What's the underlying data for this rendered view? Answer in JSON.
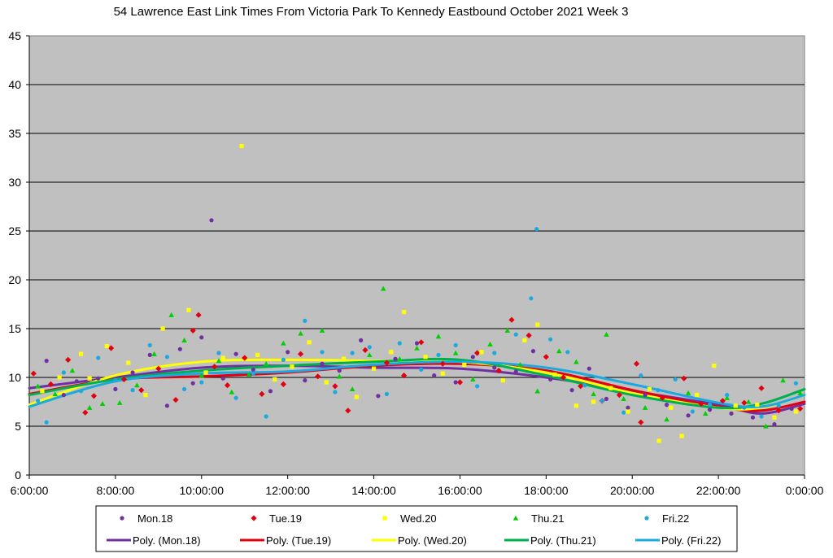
{
  "chart_data": {
    "type": "scatter",
    "title": "54 Lawrence East Link Times From Victoria Park To Kennedy Eastbound October 2021  Week 3",
    "xlabel": "",
    "ylabel": "",
    "x_ticks": [
      "6:00:00",
      "8:00:00",
      "10:00:00",
      "12:00:00",
      "14:00:00",
      "16:00:00",
      "18:00:00",
      "20:00:00",
      "22:00:00",
      "0:00:00"
    ],
    "xlim_hours": [
      6,
      24
    ],
    "ylim": [
      0,
      45
    ],
    "y_ticks": [
      "0",
      "5",
      "10",
      "15",
      "20",
      "25",
      "30",
      "35",
      "40",
      "45"
    ],
    "grid": true,
    "plot_background": "#c0c0c0",
    "legend_position": "bottom",
    "series": [
      {
        "name": "Mon.18",
        "marker": "circle",
        "color": "#7030a0",
        "points": [
          [
            6.4,
            11.7
          ],
          [
            6.8,
            8.2
          ],
          [
            7.1,
            9.6
          ],
          [
            7.6,
            9.9
          ],
          [
            8.0,
            8.8
          ],
          [
            8.4,
            10.5
          ],
          [
            8.8,
            12.3
          ],
          [
            9.2,
            7.1
          ],
          [
            9.5,
            12.9
          ],
          [
            9.8,
            9.4
          ],
          [
            10.0,
            14.1
          ],
          [
            10.23,
            26.1
          ],
          [
            10.5,
            9.9
          ],
          [
            10.8,
            12.4
          ],
          [
            11.2,
            10.8
          ],
          [
            11.6,
            8.6
          ],
          [
            12.0,
            12.6
          ],
          [
            12.4,
            9.7
          ],
          [
            12.8,
            11.4
          ],
          [
            13.2,
            10.7
          ],
          [
            13.7,
            13.8
          ],
          [
            14.1,
            8.1
          ],
          [
            14.5,
            11.9
          ],
          [
            15.0,
            13.5
          ],
          [
            15.4,
            10.2
          ],
          [
            15.9,
            9.5
          ],
          [
            16.3,
            12.1
          ],
          [
            16.8,
            11.0
          ],
          [
            17.3,
            10.6
          ],
          [
            17.7,
            12.7
          ],
          [
            18.1,
            9.8
          ],
          [
            18.6,
            8.7
          ],
          [
            19.0,
            10.9
          ],
          [
            19.4,
            7.8
          ],
          [
            19.9,
            6.9
          ],
          [
            20.3,
            8.2
          ],
          [
            20.8,
            7.2
          ],
          [
            21.3,
            6.1
          ],
          [
            21.8,
            6.7
          ],
          [
            22.3,
            6.3
          ],
          [
            22.8,
            5.9
          ],
          [
            23.3,
            5.2
          ],
          [
            23.7,
            6.8
          ]
        ]
      },
      {
        "name": "Tue.19",
        "marker": "diamond",
        "color": "#e3000f",
        "points": [
          [
            6.1,
            10.4
          ],
          [
            6.5,
            9.3
          ],
          [
            6.9,
            11.8
          ],
          [
            7.3,
            6.4
          ],
          [
            7.5,
            8.1
          ],
          [
            7.9,
            13.0
          ],
          [
            8.2,
            9.8
          ],
          [
            8.6,
            8.7
          ],
          [
            9.0,
            10.9
          ],
          [
            9.4,
            7.7
          ],
          [
            9.8,
            14.8
          ],
          [
            9.93,
            16.4
          ],
          [
            10.3,
            11.1
          ],
          [
            10.6,
            9.2
          ],
          [
            11.0,
            12.0
          ],
          [
            11.4,
            8.3
          ],
          [
            11.9,
            9.3
          ],
          [
            12.3,
            12.4
          ],
          [
            12.7,
            10.1
          ],
          [
            13.1,
            9.1
          ],
          [
            13.4,
            6.6
          ],
          [
            13.8,
            12.8
          ],
          [
            14.3,
            11.5
          ],
          [
            14.7,
            10.2
          ],
          [
            15.1,
            13.6
          ],
          [
            15.6,
            11.4
          ],
          [
            16.0,
            9.5
          ],
          [
            16.4,
            12.5
          ],
          [
            16.9,
            10.7
          ],
          [
            17.2,
            15.9
          ],
          [
            17.6,
            14.3
          ],
          [
            18.0,
            12.1
          ],
          [
            18.4,
            10.0
          ],
          [
            18.8,
            9.1
          ],
          [
            19.3,
            7.6
          ],
          [
            19.7,
            8.2
          ],
          [
            20.1,
            11.4
          ],
          [
            20.2,
            5.4
          ],
          [
            20.7,
            7.9
          ],
          [
            21.2,
            9.9
          ],
          [
            21.6,
            7.3
          ],
          [
            22.1,
            7.6
          ],
          [
            22.6,
            7.4
          ],
          [
            23.0,
            8.9
          ],
          [
            23.4,
            6.6
          ],
          [
            23.9,
            6.8
          ]
        ]
      },
      {
        "name": "Wed.20",
        "marker": "square",
        "color": "#ffff00",
        "points": [
          [
            6.3,
            8.6
          ],
          [
            6.7,
            10.0
          ],
          [
            7.2,
            12.4
          ],
          [
            7.4,
            9.9
          ],
          [
            7.8,
            13.2
          ],
          [
            8.3,
            11.5
          ],
          [
            8.7,
            8.2
          ],
          [
            9.1,
            15.0
          ],
          [
            9.7,
            16.9
          ],
          [
            10.1,
            10.5
          ],
          [
            10.5,
            12.0
          ],
          [
            10.93,
            33.7
          ],
          [
            11.3,
            12.3
          ],
          [
            11.7,
            9.8
          ],
          [
            12.1,
            11.1
          ],
          [
            12.5,
            13.6
          ],
          [
            12.9,
            9.5
          ],
          [
            13.3,
            11.9
          ],
          [
            13.6,
            8.0
          ],
          [
            14.0,
            10.9
          ],
          [
            14.4,
            12.6
          ],
          [
            14.7,
            16.7
          ],
          [
            15.2,
            12.1
          ],
          [
            15.6,
            10.4
          ],
          [
            16.1,
            11.3
          ],
          [
            16.5,
            12.6
          ],
          [
            17.0,
            9.7
          ],
          [
            17.5,
            13.8
          ],
          [
            17.8,
            15.4
          ],
          [
            18.2,
            10.3
          ],
          [
            18.7,
            7.1
          ],
          [
            19.1,
            7.5
          ],
          [
            19.5,
            8.9
          ],
          [
            19.9,
            6.5
          ],
          [
            20.4,
            8.8
          ],
          [
            20.62,
            3.5
          ],
          [
            20.9,
            6.9
          ],
          [
            21.15,
            4.0
          ],
          [
            21.5,
            8.2
          ],
          [
            21.9,
            11.2
          ],
          [
            22.4,
            7.1
          ],
          [
            22.9,
            7.2
          ],
          [
            23.3,
            5.9
          ],
          [
            23.8,
            6.5
          ]
        ]
      },
      {
        "name": "Thu.21",
        "marker": "triangle",
        "color": "#00d000",
        "points": [
          [
            6.2,
            9.1
          ],
          [
            6.6,
            8.3
          ],
          [
            7.0,
            10.7
          ],
          [
            7.4,
            6.9
          ],
          [
            7.7,
            7.3
          ],
          [
            8.1,
            7.4
          ],
          [
            8.5,
            9.2
          ],
          [
            8.9,
            12.4
          ],
          [
            9.3,
            16.4
          ],
          [
            9.6,
            13.8
          ],
          [
            10.0,
            10.2
          ],
          [
            10.4,
            11.7
          ],
          [
            10.7,
            8.5
          ],
          [
            11.1,
            10.3
          ],
          [
            11.5,
            11.4
          ],
          [
            11.9,
            13.5
          ],
          [
            12.3,
            14.5
          ],
          [
            12.8,
            14.8
          ],
          [
            13.2,
            10.1
          ],
          [
            13.5,
            8.8
          ],
          [
            13.9,
            12.3
          ],
          [
            14.22,
            19.1
          ],
          [
            14.6,
            11.9
          ],
          [
            15.0,
            13.0
          ],
          [
            15.5,
            14.2
          ],
          [
            15.9,
            12.5
          ],
          [
            16.3,
            9.8
          ],
          [
            16.7,
            13.4
          ],
          [
            17.1,
            14.8
          ],
          [
            17.4,
            11.3
          ],
          [
            17.8,
            8.6
          ],
          [
            18.3,
            12.7
          ],
          [
            18.7,
            11.6
          ],
          [
            19.1,
            8.3
          ],
          [
            19.4,
            14.4
          ],
          [
            19.8,
            7.8
          ],
          [
            20.3,
            6.9
          ],
          [
            20.8,
            5.7
          ],
          [
            21.3,
            8.4
          ],
          [
            21.7,
            6.3
          ],
          [
            22.2,
            7.9
          ],
          [
            22.7,
            7.5
          ],
          [
            23.1,
            5.0
          ],
          [
            23.5,
            9.7
          ],
          [
            23.9,
            8.4
          ]
        ]
      },
      {
        "name": "Fri.22",
        "marker": "circle",
        "color": "#1ca9e0",
        "points": [
          [
            6.2,
            7.6
          ],
          [
            6.4,
            5.4
          ],
          [
            6.8,
            10.5
          ],
          [
            7.2,
            8.6
          ],
          [
            7.6,
            12.0
          ],
          [
            8.0,
            9.7
          ],
          [
            8.4,
            8.7
          ],
          [
            8.8,
            13.3
          ],
          [
            9.2,
            12.1
          ],
          [
            9.6,
            8.8
          ],
          [
            10.0,
            9.5
          ],
          [
            10.4,
            12.5
          ],
          [
            10.8,
            7.9
          ],
          [
            11.2,
            10.4
          ],
          [
            11.5,
            6.0
          ],
          [
            11.9,
            11.8
          ],
          [
            12.4,
            15.8
          ],
          [
            12.8,
            12.6
          ],
          [
            13.1,
            8.5
          ],
          [
            13.5,
            12.5
          ],
          [
            13.9,
            13.1
          ],
          [
            14.3,
            8.3
          ],
          [
            14.6,
            13.5
          ],
          [
            15.1,
            10.8
          ],
          [
            15.5,
            12.3
          ],
          [
            15.9,
            13.3
          ],
          [
            16.4,
            9.1
          ],
          [
            16.8,
            12.5
          ],
          [
            17.3,
            14.4
          ],
          [
            17.65,
            18.1
          ],
          [
            17.78,
            25.2
          ],
          [
            18.1,
            13.9
          ],
          [
            18.5,
            12.6
          ],
          [
            18.9,
            9.2
          ],
          [
            19.3,
            7.6
          ],
          [
            19.8,
            6.4
          ],
          [
            20.2,
            10.2
          ],
          [
            20.6,
            8.7
          ],
          [
            21.0,
            9.8
          ],
          [
            21.4,
            6.5
          ],
          [
            21.8,
            7.2
          ],
          [
            22.2,
            8.2
          ],
          [
            22.6,
            6.9
          ],
          [
            23.0,
            6.0
          ],
          [
            23.4,
            7.1
          ],
          [
            23.8,
            9.4
          ]
        ]
      }
    ],
    "trend_lines": [
      {
        "name": "Poly. (Mon.18)",
        "color": "#7030a0",
        "points": [
          [
            6,
            8.9
          ],
          [
            8,
            10.0
          ],
          [
            10,
            11.0
          ],
          [
            12,
            11.2
          ],
          [
            14,
            11.0
          ],
          [
            16,
            10.9
          ],
          [
            18,
            10.0
          ],
          [
            20,
            8.6
          ],
          [
            22,
            7.2
          ],
          [
            23,
            6.3
          ],
          [
            24,
            7.3
          ]
        ]
      },
      {
        "name": "Poly. (Tue.19)",
        "color": "#e3000f",
        "points": [
          [
            6,
            8.3
          ],
          [
            8,
            9.8
          ],
          [
            10,
            10.1
          ],
          [
            12,
            10.5
          ],
          [
            14,
            11.2
          ],
          [
            16,
            11.4
          ],
          [
            18,
            10.7
          ],
          [
            20,
            8.7
          ],
          [
            22,
            7.0
          ],
          [
            23,
            6.6
          ],
          [
            24,
            7.5
          ]
        ]
      },
      {
        "name": "Poly. (Wed.20)",
        "color": "#ffff00",
        "points": [
          [
            6,
            7.2
          ],
          [
            8,
            10.2
          ],
          [
            10,
            11.6
          ],
          [
            12,
            11.8
          ],
          [
            14,
            11.7
          ],
          [
            16,
            11.6
          ],
          [
            18,
            10.5
          ],
          [
            20,
            8.4
          ],
          [
            22,
            6.9
          ],
          [
            23,
            6.9
          ],
          [
            24,
            8.2
          ]
        ]
      },
      {
        "name": "Poly. (Thu.21)",
        "color": "#00b050",
        "points": [
          [
            6,
            8.2
          ],
          [
            8,
            9.8
          ],
          [
            10,
            10.7
          ],
          [
            12,
            11.2
          ],
          [
            14,
            11.6
          ],
          [
            16,
            11.8
          ],
          [
            18,
            10.2
          ],
          [
            20,
            8.2
          ],
          [
            22,
            6.9
          ],
          [
            23,
            7.3
          ],
          [
            24,
            8.8
          ]
        ]
      },
      {
        "name": "Poly. (Fri.22)",
        "color": "#1ca9e0",
        "points": [
          [
            6,
            7.0
          ],
          [
            8,
            9.6
          ],
          [
            10,
            10.4
          ],
          [
            12,
            10.6
          ],
          [
            14,
            11.3
          ],
          [
            16,
            11.6
          ],
          [
            18,
            11.0
          ],
          [
            20,
            9.3
          ],
          [
            22,
            7.4
          ],
          [
            23,
            7.0
          ],
          [
            24,
            8.2
          ]
        ]
      }
    ]
  }
}
